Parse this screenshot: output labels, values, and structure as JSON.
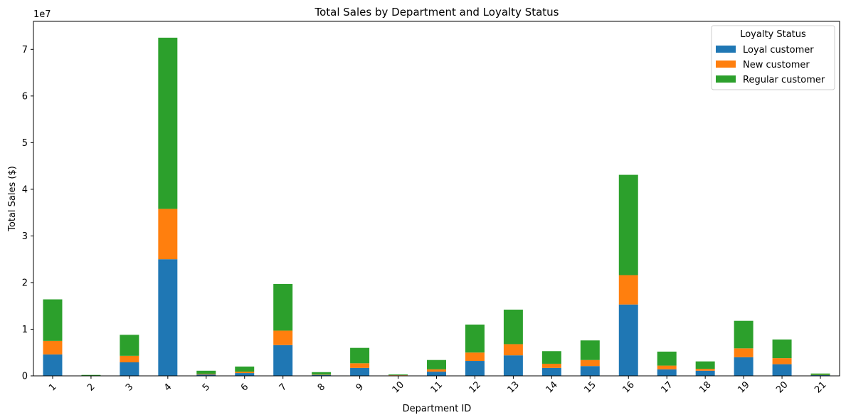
{
  "chart_data": {
    "type": "bar",
    "stacked": true,
    "title": "Total Sales by Department and Loyalty Status",
    "xlabel": "Department ID",
    "ylabel": "Total Sales ($)",
    "y_scale_label": "1e7",
    "categories": [
      "1",
      "2",
      "3",
      "4",
      "5",
      "6",
      "7",
      "8",
      "9",
      "10",
      "11",
      "12",
      "13",
      "14",
      "15",
      "16",
      "17",
      "18",
      "19",
      "20",
      "21"
    ],
    "ylim": [
      0,
      76000000
    ],
    "yticks": [
      0,
      10000000,
      20000000,
      30000000,
      40000000,
      50000000,
      60000000,
      70000000
    ],
    "ytick_labels": [
      "0",
      "1",
      "2",
      "3",
      "4",
      "5",
      "6",
      "7"
    ],
    "legend": {
      "title": "Loyalty Status",
      "position": "top-right"
    },
    "grid": false,
    "series": [
      {
        "name": "Loyal customer",
        "color": "#1f77b4",
        "values": [
          4600000,
          50000,
          2900000,
          25000000,
          300000,
          600000,
          6600000,
          200000,
          1700000,
          100000,
          900000,
          3200000,
          4400000,
          1700000,
          2100000,
          15300000,
          1400000,
          1100000,
          4000000,
          2500000,
          150000
        ]
      },
      {
        "name": "New customer",
        "color": "#ff7f0e",
        "values": [
          2900000,
          20000,
          1400000,
          10800000,
          150000,
          300000,
          3100000,
          80000,
          1000000,
          50000,
          500000,
          1800000,
          2400000,
          900000,
          1300000,
          6300000,
          800000,
          400000,
          1900000,
          1300000,
          50000
        ]
      },
      {
        "name": "Regular customer",
        "color": "#2ca02c",
        "values": [
          8900000,
          130000,
          4500000,
          36700000,
          650000,
          1100000,
          10000000,
          520000,
          3300000,
          150000,
          2000000,
          6000000,
          7400000,
          2700000,
          4200000,
          21500000,
          3000000,
          1600000,
          5900000,
          4000000,
          300000
        ]
      }
    ]
  }
}
